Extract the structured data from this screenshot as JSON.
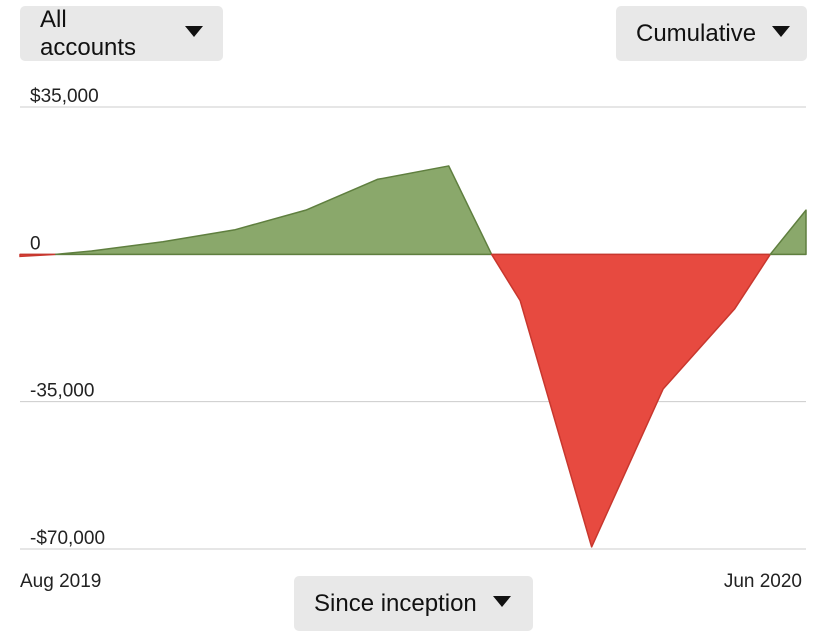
{
  "controls": {
    "account_select": "All accounts",
    "mode_select": "Cumulative",
    "range_select": "Since inception"
  },
  "colors": {
    "positive": "#8aa86b",
    "positive_stroke": "#5f7f3f",
    "negative": "#e74a40",
    "negative_stroke": "#c8372e",
    "grid": "#cccccc"
  },
  "chart_data": {
    "type": "area",
    "ylim": [
      -70000,
      35000
    ],
    "y_ticks": [
      {
        "value": 35000,
        "label": "$35,000"
      },
      {
        "value": 0,
        "label": "0"
      },
      {
        "value": -35000,
        "label": "-35,000"
      },
      {
        "value": -70000,
        "label": "-$70,000"
      }
    ],
    "x_labels": [
      "Aug 2019",
      "Jun 2020"
    ],
    "xlim": [
      0,
      11
    ],
    "points": [
      {
        "x": 0,
        "y": -500
      },
      {
        "x": 0.5,
        "y": 0
      },
      {
        "x": 1,
        "y": 800
      },
      {
        "x": 2,
        "y": 3000
      },
      {
        "x": 3,
        "y": 5800
      },
      {
        "x": 4,
        "y": 10500
      },
      {
        "x": 5,
        "y": 17800
      },
      {
        "x": 6,
        "y": 21000
      },
      {
        "x": 6.6,
        "y": 0
      },
      {
        "x": 7,
        "y": -11000
      },
      {
        "x": 8,
        "y": -69500
      },
      {
        "x": 9,
        "y": -32000
      },
      {
        "x": 10,
        "y": -13000
      },
      {
        "x": 10.5,
        "y": 0
      },
      {
        "x": 11,
        "y": 10500
      }
    ]
  }
}
